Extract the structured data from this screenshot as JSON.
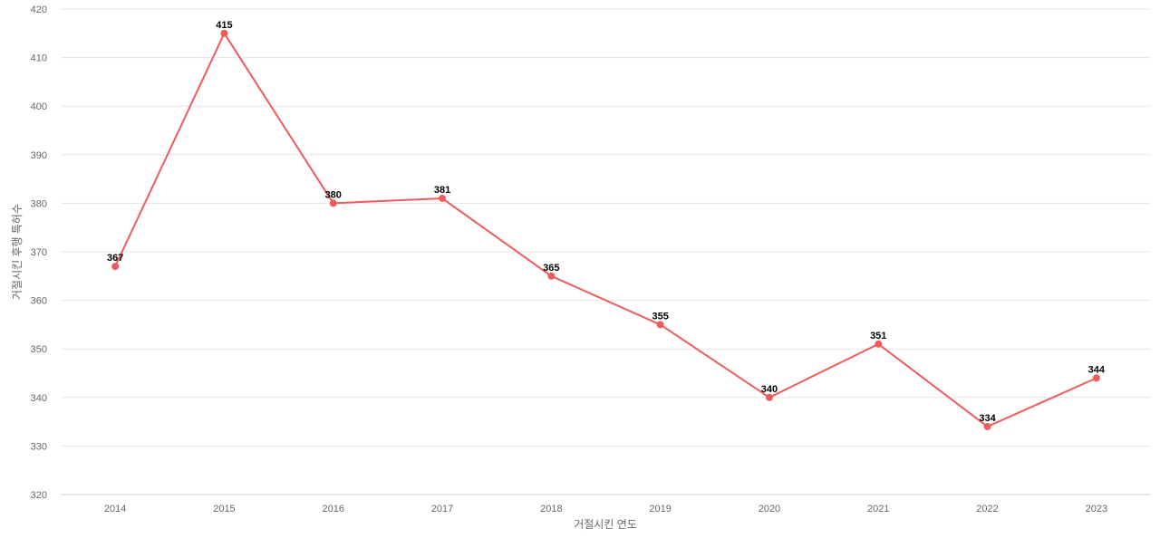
{
  "chart_data": {
    "type": "line",
    "title": "",
    "xlabel": "거절시킨 연도",
    "ylabel": "거절시킨 후행 특허수",
    "x": [
      "2014",
      "2015",
      "2016",
      "2017",
      "2018",
      "2019",
      "2020",
      "2021",
      "2022",
      "2023"
    ],
    "series": [
      {
        "values": [
          367,
          415,
          380,
          381,
          365,
          355,
          340,
          351,
          334,
          344
        ],
        "color": "#ef5b5b"
      }
    ],
    "ylim": [
      320,
      420
    ],
    "yticks": [
      320,
      330,
      340,
      350,
      360,
      370,
      380,
      390,
      400,
      410,
      420
    ],
    "grid": true,
    "legend": "none",
    "data_labels": true
  }
}
